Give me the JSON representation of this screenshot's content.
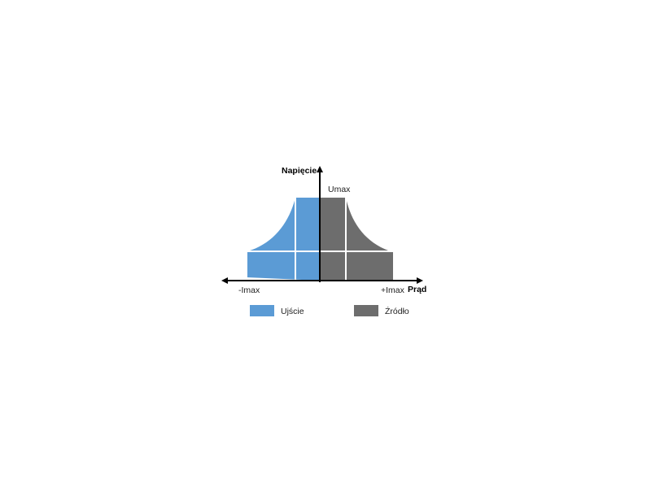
{
  "diagram": {
    "y_axis_label": "Napięcie",
    "x_axis_label": "Prąd",
    "umax_label": "Umax",
    "neg_imax_label": "-Imax",
    "pos_imax_label": "+Imax",
    "colors": {
      "sink": "#5b9bd5",
      "source": "#6d6d6d"
    }
  },
  "legend": [
    {
      "label": "Ujście",
      "color": "#5b9bd5"
    },
    {
      "label": "Źródło",
      "color": "#6d6d6d"
    }
  ]
}
